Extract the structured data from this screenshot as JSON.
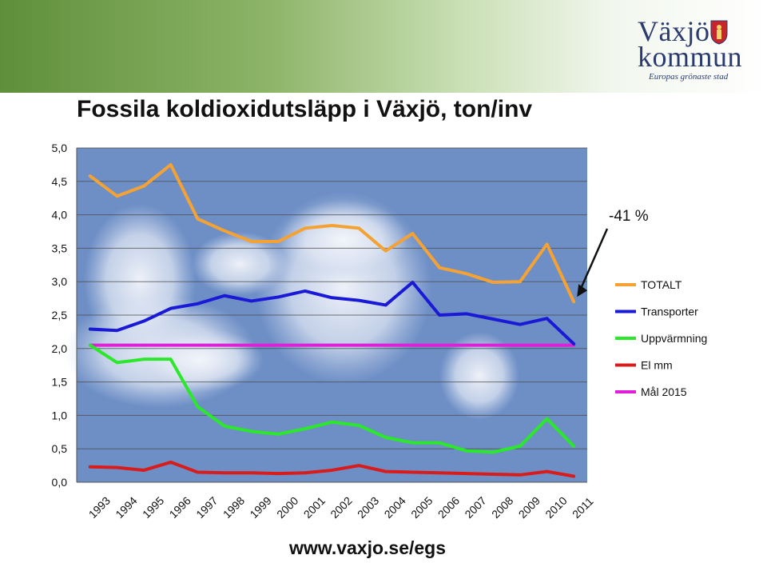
{
  "header": {
    "logo_line1": "Växjö",
    "logo_line2": "kommun",
    "logo_tagline": "Europas grönaste stad"
  },
  "title": "Fossila koldioxidutsläpp i Växjö, ton/inv",
  "annotation": "-41 %",
  "footer_url": "www.vaxjo.se/egs",
  "colors": {
    "TOTALT": "#f5a234",
    "Transporter": "#1a1ad6",
    "Uppvärmning": "#2be82b",
    "El mm": "#d81c1c",
    "Mål 2015": "#e020d8",
    "plot_bg": "#6e8fc6"
  },
  "chart_data": {
    "type": "line",
    "title": "Fossila koldioxidutsläpp i Växjö, ton/inv",
    "xlabel": "",
    "ylabel": "",
    "ylim": [
      0,
      5
    ],
    "yticks": [
      "0,0",
      "0,5",
      "1,0",
      "1,5",
      "2,0",
      "2,5",
      "3,0",
      "3,5",
      "4,0",
      "4,5",
      "5,0"
    ],
    "categories": [
      "1993",
      "1994",
      "1995",
      "1996",
      "1997",
      "1998",
      "1999",
      "2000",
      "2001",
      "2002",
      "2003",
      "2004",
      "2005",
      "2006",
      "2007",
      "2008",
      "2009",
      "2010",
      "2011"
    ],
    "grid": true,
    "legend_position": "right",
    "series": [
      {
        "name": "TOTALT",
        "values": [
          4.58,
          4.28,
          4.43,
          4.75,
          3.94,
          3.76,
          3.6,
          3.6,
          3.8,
          3.84,
          3.8,
          3.46,
          3.72,
          3.21,
          3.12,
          2.99,
          3.0,
          3.56,
          2.7
        ]
      },
      {
        "name": "Transporter",
        "values": [
          2.29,
          2.27,
          2.41,
          2.6,
          2.67,
          2.79,
          2.71,
          2.77,
          2.86,
          2.76,
          2.72,
          2.65,
          2.99,
          2.5,
          2.52,
          2.44,
          2.36,
          2.45,
          2.07
        ]
      },
      {
        "name": "Uppvärmning",
        "values": [
          2.05,
          1.79,
          1.84,
          1.84,
          1.13,
          0.84,
          0.76,
          0.72,
          0.8,
          0.9,
          0.85,
          0.67,
          0.59,
          0.59,
          0.47,
          0.45,
          0.54,
          0.95,
          0.54
        ]
      },
      {
        "name": "El mm",
        "values": [
          0.23,
          0.22,
          0.18,
          0.3,
          0.15,
          0.14,
          0.14,
          0.13,
          0.14,
          0.18,
          0.25,
          0.16,
          0.15,
          0.14,
          0.13,
          0.12,
          0.11,
          0.16,
          0.09
        ]
      },
      {
        "name": "Mål 2015",
        "values": [
          2.05,
          2.05,
          2.05,
          2.05,
          2.05,
          2.05,
          2.05,
          2.05,
          2.05,
          2.05,
          2.05,
          2.05,
          2.05,
          2.05,
          2.05,
          2.05,
          2.05,
          2.05,
          2.05
        ]
      }
    ]
  }
}
